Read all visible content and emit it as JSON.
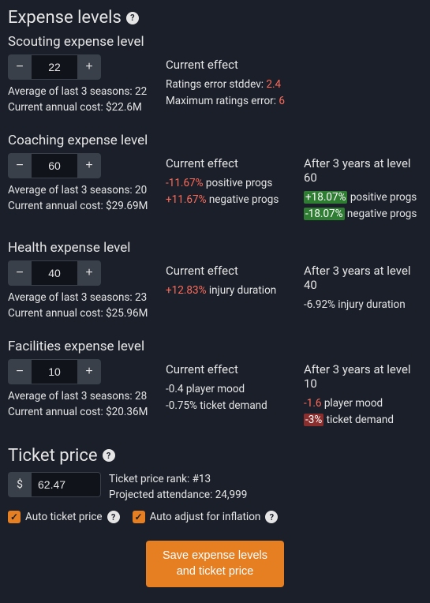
{
  "colors": {
    "bg": "#1a1f29",
    "text": "#e5e5e5",
    "panel": "#3a4049",
    "input_bg": "#10131a",
    "accent": "#e67e22",
    "red": "#ff6b5a",
    "green_bg": "#2e7d32",
    "red_bg": "#8b2e2e"
  },
  "headings": {
    "expense_levels": "Expense levels",
    "ticket_price": "Ticket price"
  },
  "minus": "−",
  "plus": "+",
  "current_effect_label": "Current effect",
  "scouting": {
    "title": "Scouting expense level",
    "value": "22",
    "avg": "Average of last 3 seasons: 22",
    "cost": "Current annual cost: $22.6M",
    "stddev_label": "Ratings error stddev: ",
    "stddev_val": "2.4",
    "max_label": "Maximum ratings error: ",
    "max_val": "6"
  },
  "coaching": {
    "title": "Coaching expense level",
    "value": "60",
    "avg": "Average of last 3 seasons: 20",
    "cost": "Current annual cost: $29.69M",
    "after_label": "After 3 years at level 60",
    "cur_pos_val": "-11.67%",
    "cur_pos_txt": " positive progs",
    "cur_neg_val": "+11.67%",
    "cur_neg_txt": " negative progs",
    "aft_pos_val": "+18.07%",
    "aft_pos_txt": " positive progs",
    "aft_neg_val": "-18.07%",
    "aft_neg_txt": " negative progs"
  },
  "health": {
    "title": "Health expense level",
    "value": "40",
    "avg": "Average of last 3 seasons: 23",
    "cost": "Current annual cost: $25.96M",
    "after_label": "After 3 years at level 40",
    "cur_val": "+12.83%",
    "cur_txt": " injury duration",
    "aft_val": "-6.92%",
    "aft_txt": " injury duration"
  },
  "facilities": {
    "title": "Facilities expense level",
    "value": "10",
    "avg": "Average of last 3 seasons: 28",
    "cost": "Current annual cost: $20.36M",
    "after_label": "After 3 years at level 10",
    "cur_mood_val": "-0.4",
    "cur_mood_txt": " player mood",
    "cur_tkt_val": "-0.75%",
    "cur_tkt_txt": " ticket demand",
    "aft_mood_val": "-1.6",
    "aft_mood_txt": " player mood",
    "aft_tkt_val": "-3%",
    "aft_tkt_txt": " ticket demand"
  },
  "ticket": {
    "currency": "$",
    "value": "62.47",
    "rank": "Ticket price rank: #13",
    "attendance": "Projected attendance: 24,999",
    "auto_price": "Auto ticket price",
    "auto_inflation": "Auto adjust for inflation"
  },
  "save_button": "Save expense levels and ticket price",
  "help_glyph": "?",
  "check_glyph": "✓"
}
